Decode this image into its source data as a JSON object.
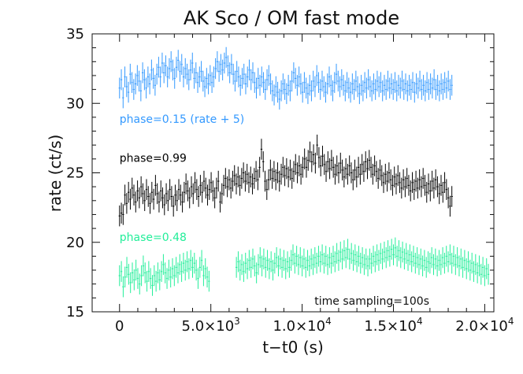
{
  "chart_data": {
    "type": "scatter",
    "title": "AK Sco / OM fast mode",
    "xlabel": "t−t0 (s)",
    "ylabel": "rate (ct/s)",
    "xlim": [
      -1500,
      20500
    ],
    "ylim": [
      15,
      35
    ],
    "grid": false,
    "x_ticks": [
      {
        "value": 0,
        "mantissa": "0",
        "exponent": ""
      },
      {
        "value": 5000,
        "mantissa": "5.0×10",
        "exponent": "3"
      },
      {
        "value": 10000,
        "mantissa": "1.0×10",
        "exponent": "4"
      },
      {
        "value": 15000,
        "mantissa": "1.5×10",
        "exponent": "4"
      },
      {
        "value": 20000,
        "mantissa": "2.0×10",
        "exponent": "4"
      }
    ],
    "y_ticks": [
      {
        "value": 15,
        "label": "15"
      },
      {
        "value": 20,
        "label": "20"
      },
      {
        "value": 25,
        "label": "25"
      },
      {
        "value": 30,
        "label": "30"
      },
      {
        "value": 35,
        "label": "35"
      }
    ],
    "x_minor_step": 1000,
    "y_minor_step": 1,
    "annotation": "time sampling=100s",
    "annotation_anchor": "bottom-right",
    "sampling_seconds": 100,
    "y_error": 0.75,
    "series": [
      {
        "name": "phase=0.15 (rate + 5)",
        "color": "#3399ff",
        "segments": [
          {
            "t_start": 0,
            "t_end": 18200,
            "values": [
              31.1,
              31.7,
              30.4,
              31.9,
              31.2,
              30.8,
              32.1,
              31.5,
              31.0,
              31.4,
              32.0,
              31.6,
              30.9,
              32.2,
              31.7,
              31.1,
              31.9,
              31.4,
              32.4,
              31.8,
              31.3,
              32.1,
              32.6,
              31.9,
              32.9,
              32.2,
              32.7,
              31.9,
              32.5,
              33.0,
              32.4,
              31.8,
              32.6,
              33.1,
              32.3,
              32.8,
              31.9,
              32.5,
              32.1,
              31.7,
              32.4,
              32.9,
              31.8,
              32.2,
              31.5,
              31.9,
              32.3,
              31.6,
              31.2,
              31.8,
              31.4,
              32.0,
              31.5,
              31.9,
              32.5,
              33.0,
              32.3,
              32.8,
              32.4,
              32.9,
              33.3,
              32.7,
              32.2,
              32.8,
              32.1,
              31.6,
              32.3,
              31.9,
              31.3,
              31.8,
              32.1,
              31.4,
              31.9,
              32.4,
              31.7,
              32.2,
              31.5,
              31.1,
              31.8,
              31.3,
              31.9,
              31.5,
              31.0,
              31.7,
              32.0,
              31.4,
              30.9,
              30.6,
              31.2,
              30.8,
              30.3,
              30.9,
              31.4,
              31.0,
              30.7,
              31.3,
              30.9,
              31.6,
              32.2,
              31.8,
              31.3,
              31.9,
              31.4,
              30.8,
              31.5,
              31.1,
              30.7,
              31.3,
              30.9,
              31.6,
              31.2,
              32.0,
              31.5,
              31.0,
              31.6,
              31.2,
              30.8,
              31.4,
              31.9,
              31.3,
              30.9,
              31.5,
              32.1,
              31.6,
              31.2,
              31.7,
              31.3,
              30.9,
              31.5,
              31.1,
              30.8,
              31.4,
              31.0,
              31.6,
              31.2,
              30.7,
              31.3,
              30.9,
              31.5,
              31.1,
              31.7,
              31.2,
              30.9,
              31.4,
              31.0,
              31.6,
              31.2,
              31.5,
              30.9,
              31.3,
              31.0,
              31.6,
              31.1,
              31.4,
              31.0,
              31.5,
              30.9,
              31.3,
              31.1,
              31.6,
              31.0,
              31.4,
              30.9,
              31.3,
              31.0,
              31.5,
              30.8,
              31.4,
              31.1,
              31.6,
              31.0,
              31.3,
              30.9,
              31.5,
              31.0,
              31.4,
              31.1,
              31.7,
              31.0,
              31.3,
              30.9,
              31.4,
              31.0,
              31.5,
              31.1,
              31.6,
              31.0,
              31.3
            ]
          }
        ]
      },
      {
        "name": "phase=0.99",
        "color": "#000000",
        "segments": [
          {
            "t_start": 0,
            "t_end": 18200,
            "values": [
              21.9,
              22.1,
              22.0,
              23.4,
              22.8,
              23.6,
              23.1,
              23.9,
              23.4,
              22.9,
              23.7,
              23.2,
              24.0,
              23.5,
              23.0,
              23.8,
              23.3,
              22.8,
              23.6,
              23.1,
              24.1,
              23.5,
              22.9,
              23.7,
              23.2,
              22.7,
              23.5,
              23.0,
              23.8,
              23.3,
              22.6,
              23.4,
              23.0,
              23.8,
              23.4,
              22.9,
              23.6,
              24.2,
              23.7,
              23.2,
              24.0,
              23.5,
              24.3,
              23.8,
              23.3,
              24.1,
              23.6,
              24.4,
              23.9,
              23.4,
              23.8,
              24.3,
              23.7,
              23.2,
              23.9,
              24.4,
              22.9,
              23.5,
              24.1,
              24.6,
              24.0,
              24.5,
              23.9,
              24.4,
              24.8,
              24.2,
              24.7,
              24.1,
              24.6,
              25.0,
              24.4,
              24.9,
              24.3,
              24.7,
              24.2,
              24.6,
              25.1,
              24.5,
              25.4,
              26.7,
              25.8,
              24.4,
              23.8,
              24.5,
              25.2,
              24.6,
              25.1,
              24.5,
              25.0,
              24.4,
              24.9,
              25.4,
              24.8,
              25.3,
              24.7,
              25.2,
              24.6,
              25.1,
              25.6,
              25.0,
              25.5,
              24.9,
              25.4,
              26.0,
              25.4,
              25.9,
              26.5,
              25.8,
              26.3,
              25.7,
              27.0,
              26.1,
              25.5,
              26.2,
              25.6,
              25.1,
              25.8,
              25.3,
              25.9,
              25.4,
              24.9,
              25.5,
              25.0,
              25.7,
              25.2,
              24.7,
              25.3,
              24.9,
              25.5,
              25.0,
              24.5,
              25.2,
              24.7,
              25.4,
              24.9,
              25.6,
              25.1,
              25.8,
              25.3,
              25.9,
              25.4,
              24.9,
              25.5,
              25.1,
              24.6,
              25.2,
              24.8,
              24.3,
              24.9,
              24.4,
              25.0,
              24.5,
              24.1,
              24.7,
              24.2,
              24.8,
              24.3,
              23.9,
              24.5,
              24.0,
              24.6,
              24.1,
              23.7,
              24.3,
              23.8,
              24.4,
              23.9,
              24.5,
              24.0,
              24.6,
              24.1,
              23.6,
              24.2,
              23.7,
              24.4,
              23.9,
              24.5,
              24.0,
              23.5,
              24.1,
              23.6,
              24.3,
              23.8,
              23.2,
              22.6,
              23.3
            ]
          }
        ]
      },
      {
        "name": "phase=0.48",
        "color": "#22ee99",
        "segments": [
          {
            "t_start": 0,
            "t_end": 4900,
            "values": [
              17.6,
              17.9,
              16.8,
              17.5,
              18.2,
              17.7,
              17.1,
              17.8,
              17.3,
              18.0,
              17.4,
              17.0,
              17.6,
              18.3,
              17.8,
              17.2,
              17.9,
              17.4,
              16.9,
              17.6,
              17.2,
              17.8,
              17.3,
              17.9,
              18.4,
              17.8,
              17.4,
              18.0,
              17.5,
              18.1,
              17.6,
              18.2,
              17.8,
              18.4,
              17.9,
              18.5,
              18.0,
              18.6,
              18.1,
              18.7,
              18.2,
              18.5,
              18.0,
              17.4,
              18.2,
              18.7,
              17.6,
              18.1,
              17.5,
              17.2
            ]
          },
          {
            "t_start": 6400,
            "t_end": 20200,
            "values": [
              18.2,
              18.6,
              18.0,
              18.4,
              17.9,
              18.5,
              18.1,
              18.7,
              18.2,
              18.8,
              18.3,
              17.8,
              18.4,
              18.9,
              18.3,
              18.8,
              18.2,
              18.7,
              18.1,
              18.6,
              18.0,
              18.5,
              18.9,
              18.3,
              18.8,
              18.2,
              18.7,
              18.1,
              18.6,
              18.2,
              18.7,
              19.1,
              18.5,
              19.0,
              18.4,
              18.9,
              18.3,
              18.8,
              18.2,
              18.7,
              18.3,
              18.8,
              18.4,
              18.9,
              18.5,
              19.0,
              18.6,
              19.1,
              18.5,
              19.0,
              18.4,
              18.9,
              18.5,
              19.0,
              18.6,
              19.2,
              18.7,
              19.3,
              18.8,
              19.4,
              18.9,
              19.5,
              18.8,
              19.2,
              18.7,
              19.1,
              18.6,
              19.0,
              18.5,
              18.9,
              18.4,
              18.8,
              18.3,
              18.8,
              18.5,
              19.0,
              18.6,
              19.1,
              18.7,
              19.2,
              18.8,
              19.3,
              18.9,
              19.4,
              19.0,
              19.5,
              19.1,
              19.6,
              19.0,
              19.4,
              18.9,
              19.3,
              18.8,
              19.2,
              18.7,
              19.1,
              18.6,
              19.0,
              18.5,
              18.9,
              18.4,
              18.8,
              18.3,
              18.7,
              18.2,
              18.6,
              18.5,
              18.9,
              18.4,
              18.8,
              18.3,
              18.7,
              18.4,
              18.9,
              18.5,
              19.0,
              18.6,
              19.1,
              18.5,
              19.0,
              18.4,
              18.9,
              18.3,
              18.8,
              18.2,
              18.7,
              18.1,
              18.6,
              18.0,
              18.5,
              17.9,
              18.4,
              17.8,
              18.3,
              17.7,
              18.2,
              17.6,
              18.1,
              17.7
            ]
          }
        ]
      }
    ],
    "labels": [
      {
        "text": "phase=0.15 (rate + 5)",
        "color": "#3399ff",
        "x": 0,
        "y": 28.6
      },
      {
        "text": "phase=0.99",
        "color": "#000000",
        "x": 0,
        "y": 25.8
      },
      {
        "text": "phase=0.48",
        "color": "#22ee99",
        "x": 0,
        "y": 20.1
      }
    ]
  }
}
